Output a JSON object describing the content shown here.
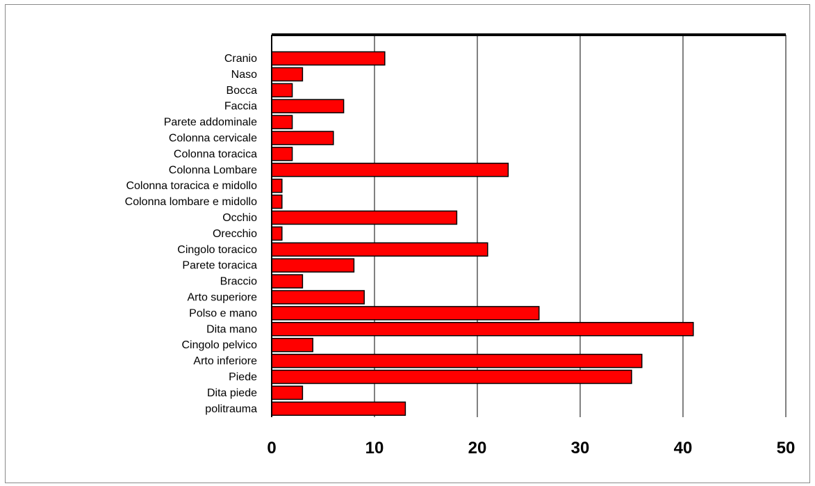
{
  "chart_data": {
    "type": "bar",
    "orientation": "horizontal",
    "categories": [
      "Cranio",
      "Naso",
      "Bocca",
      "Faccia",
      "Parete addominale",
      "Colonna cervicale",
      "Colonna toracica",
      "Colonna Lombare",
      "Colonna toracica e midollo",
      "Colonna lombare e midollo",
      "Occhio",
      "Orecchio",
      "Cingolo toracico",
      "Parete toracica",
      "Braccio",
      "Arto superiore",
      "Polso e mano",
      "Dita mano",
      "Cingolo pelvico",
      "Arto inferiore",
      "Piede",
      "Dita piede",
      "politrauma"
    ],
    "values": [
      11,
      3,
      2,
      7,
      2,
      6,
      2,
      23,
      1,
      1,
      18,
      1,
      21,
      8,
      3,
      9,
      26,
      41,
      4,
      36,
      35,
      3,
      13
    ],
    "xlim": [
      0,
      50
    ],
    "xticks": [
      "0",
      "10",
      "20",
      "30",
      "40",
      "50"
    ],
    "title": "",
    "xlabel": "",
    "ylabel": "",
    "grid": "vertical",
    "legend": "none",
    "bar_color": "#ff0000",
    "bar_edge_color": "#000000"
  }
}
